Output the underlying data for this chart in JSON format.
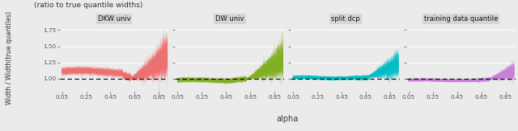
{
  "panels": [
    {
      "title": "DKW univ",
      "color": "#F07070",
      "type": "dkw"
    },
    {
      "title": "DW univ",
      "color": "#80B020",
      "type": "dw"
    },
    {
      "title": "split dcp",
      "color": "#00BEC4",
      "type": "split"
    },
    {
      "title": "training data quantile",
      "color": "#C880D8",
      "type": "training"
    }
  ],
  "xlim": [
    0.03,
    0.93
  ],
  "ylim": [
    0.8,
    1.85
  ],
  "yticks": [
    1.0,
    1.25,
    1.5,
    1.75
  ],
  "ytick_labels": [
    "1.00",
    "1.25",
    "1.50",
    "1.75"
  ],
  "xticks": [
    0.05,
    0.25,
    0.45,
    0.65,
    0.85
  ],
  "xtick_labels": [
    "0.05",
    "0.25",
    "0.45",
    "0.65",
    "0.85"
  ],
  "xlabel": "alpha",
  "ylabel": "Width / Width(true quantiles)",
  "suptitle": "(ratio to true quantile widths)",
  "n_lines": 80,
  "hline_y": 1.0,
  "bg_color": "#EBEBEB",
  "fig_bg": "#EBEBEB",
  "title_bg": "#D5D5D5"
}
